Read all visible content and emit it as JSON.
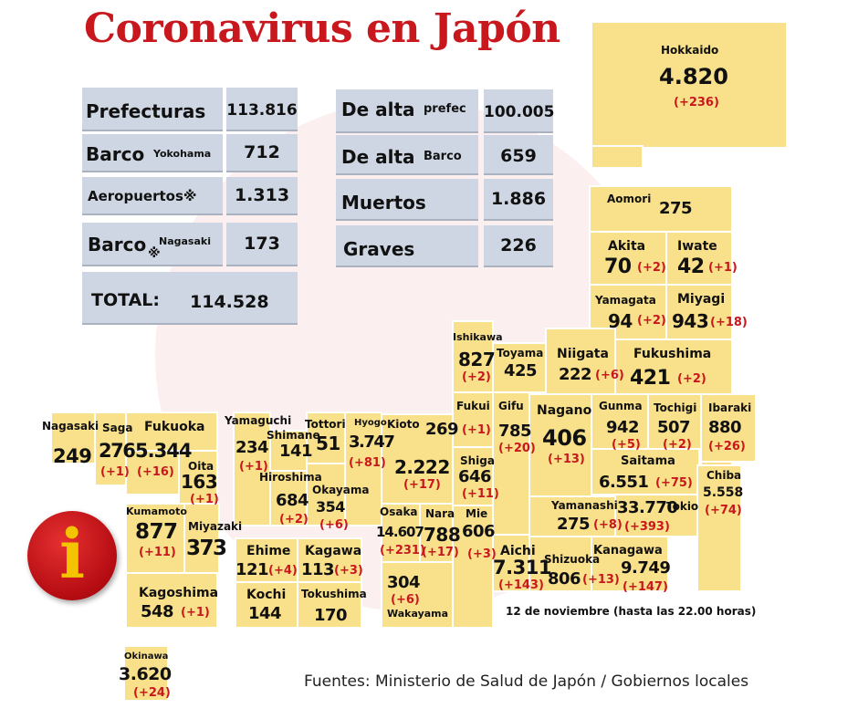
{
  "title": "Coronavirus en Japón",
  "summary_left": {
    "prefecturas_label": "Prefecturas",
    "prefecturas_value": "113.816",
    "barco_yokohama_label": "Barco",
    "barco_yokohama_sub": "Yokohama",
    "barco_yokohama_value": "712",
    "aeropuertos_label": "Aeropuertos※",
    "aeropuertos_value": "1.313",
    "barco_nagasaki_label": "Barco",
    "barco_nagasaki_mark": "※",
    "barco_nagasaki_sub": "Nagasaki",
    "barco_nagasaki_value": "173",
    "total_label": "TOTAL:",
    "total_value": "114.528"
  },
  "summary_right": {
    "alta_prefec_label": "De alta",
    "alta_prefec_sub": "prefec",
    "alta_prefec_value": "100.005",
    "alta_barco_label": "De alta",
    "alta_barco_sub": "Barco",
    "alta_barco_value": "659",
    "muertos_label": "Muertos",
    "muertos_value": "1.886",
    "graves_label": "Graves",
    "graves_value": "226"
  },
  "prefectures": {
    "hokkaido": {
      "name": "Hokkaido",
      "value": "4.820",
      "delta": "(+236)"
    },
    "aomori": {
      "name": "Aomori",
      "value": "275"
    },
    "akita": {
      "name": "Akita",
      "value": "70",
      "delta": "(+2)"
    },
    "iwate": {
      "name": "Iwate",
      "value": "42",
      "delta": "(+1)"
    },
    "yamagata": {
      "name": "Yamagata",
      "value": "94",
      "delta": "(+2)"
    },
    "miyagi": {
      "name": "Miyagi",
      "value": "943",
      "delta": "(+18)"
    },
    "ishikawa": {
      "name": "Ishikawa",
      "value": "827",
      "delta": "(+2)"
    },
    "toyama": {
      "name": "Toyama",
      "value": "425"
    },
    "niigata": {
      "name": "Niigata",
      "value": "222",
      "delta": "(+6)"
    },
    "fukushima": {
      "name": "Fukushima",
      "value": "421",
      "delta": "(+2)"
    },
    "fukui": {
      "name": "Fukui",
      "value": "269",
      "delta": "(+1)"
    },
    "gifu": {
      "name": "Gifu",
      "value": "785",
      "delta": "(+20)"
    },
    "nagano": {
      "name": "Nagano",
      "value": "406",
      "delta": "(+13)"
    },
    "gunma": {
      "name": "Gunma",
      "value": "942",
      "delta": "(+5)"
    },
    "tochigi": {
      "name": "Tochigi",
      "value": "507",
      "delta": "(+2)"
    },
    "ibaraki": {
      "name": "Ibaraki",
      "value": "880",
      "delta": "(+26)"
    },
    "saitama": {
      "name": "Saitama",
      "value": "6.551",
      "delta": "(+75)"
    },
    "chiba": {
      "name": "Chiba",
      "value": "5.558",
      "delta": "(+74)"
    },
    "tokio": {
      "name": "Tokio",
      "value": "33.770",
      "delta": "(+393)"
    },
    "yamanashi": {
      "name": "Yamanashi",
      "value": "275",
      "delta": "(+8)"
    },
    "kanagawa": {
      "name": "Kanagawa",
      "value": "9.749",
      "delta": "(+147)"
    },
    "shizuoka": {
      "name": "Shizuoka",
      "value": "806",
      "delta": "(+13)"
    },
    "aichi": {
      "name": "Aichi",
      "value": "7.311",
      "delta": "(+143)"
    },
    "mie": {
      "name": "Mie",
      "value": "606",
      "delta": "(+3)"
    },
    "shiga": {
      "name": "Shiga",
      "value": "646",
      "delta": "(+11)"
    },
    "kioto": {
      "name": "Kioto",
      "value": "2.222",
      "delta": "(+17)"
    },
    "nara": {
      "name": "Nara",
      "value": "788",
      "delta": "(+17)"
    },
    "osaka": {
      "name": "Osaka",
      "value": "14.607",
      "delta": "(+231)"
    },
    "wakayama": {
      "name": "Wakayama",
      "value": "304",
      "delta": "(+6)"
    },
    "hyogo": {
      "name": "Hyogo",
      "value": "3.747",
      "delta": "(+81)"
    },
    "tottori": {
      "name": "Tottori",
      "value": "51"
    },
    "shimane": {
      "name": "Shimane",
      "value": "141"
    },
    "okayama": {
      "name": "Okayama",
      "value": "354",
      "delta": "(+6)"
    },
    "hiroshima": {
      "name": "Hiroshima",
      "value": "684",
      "delta": "(+2)"
    },
    "yamaguchi": {
      "name": "Yamaguchi",
      "value": "234",
      "delta": "(+1)"
    },
    "ehime": {
      "name": "Ehime",
      "value": "121",
      "delta": "(+4)"
    },
    "kagawa": {
      "name": "Kagawa",
      "value": "113",
      "delta": "(+3)"
    },
    "kochi": {
      "name": "Kochi",
      "value": "144"
    },
    "tokushima": {
      "name": "Tokushima",
      "value": "170"
    },
    "fukuoka": {
      "name": "Fukuoka",
      "value": "5.344",
      "delta": "(+16)"
    },
    "saga": {
      "name": "Saga",
      "value": "276",
      "delta": "(+1)"
    },
    "nagasaki": {
      "name": "Nagasaki",
      "value": "249"
    },
    "oita": {
      "name": "Oita",
      "value": "163",
      "delta": "(+1)"
    },
    "kumamoto": {
      "name": "Kumamoto",
      "value": "877",
      "delta": "(+11)"
    },
    "miyazaki": {
      "name": "Miyazaki",
      "value": "373"
    },
    "kagoshima": {
      "name": "Kagoshima",
      "value": "548",
      "delta": "(+1)"
    },
    "okinawa": {
      "name": "Okinawa",
      "value": "3.620",
      "delta": "(+24)"
    }
  },
  "info_icon": {
    "glyph": "i"
  },
  "date_note": "12 de noviembre  (hasta las 22.00 horas)",
  "source": "Fuentes: Ministerio de Salud de Japón / Gobiernos locales",
  "colors": {
    "title": "#c8181e",
    "prefecture_fill": "#f9e08a",
    "summary_fill": "#cdd6e2",
    "delta": "#c8181e",
    "info_fill": "#c8181e",
    "info_glyph": "#f4c400"
  }
}
